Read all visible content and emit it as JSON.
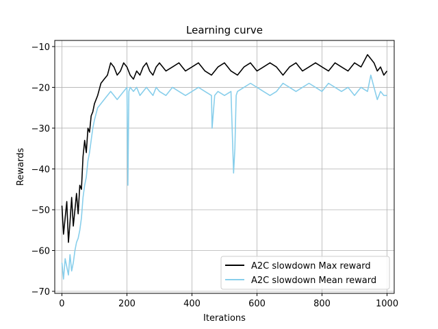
{
  "chart_data": {
    "type": "line",
    "title": "Learning curve",
    "xlabel": "Iterations",
    "ylabel": "Rewards",
    "xlim": [
      -22,
      1022
    ],
    "ylim": [
      -70.5,
      -8.5
    ],
    "xticks": [
      0,
      200,
      400,
      600,
      800,
      1000
    ],
    "yticks": [
      -70,
      -60,
      -50,
      -40,
      -30,
      -20,
      -10
    ],
    "xtick_labels": [
      "0",
      "200",
      "400",
      "600",
      "800",
      "1000"
    ],
    "ytick_labels": [
      "−70",
      "−60",
      "−50",
      "−40",
      "−30",
      "−20",
      "−10"
    ],
    "grid": true,
    "legend_position": "lower-right",
    "series": [
      {
        "name": "A2C slowdown Max reward",
        "color": "#000000",
        "x": [
          0,
          5,
          10,
          15,
          20,
          25,
          30,
          35,
          40,
          45,
          50,
          55,
          60,
          65,
          70,
          75,
          80,
          85,
          90,
          95,
          100,
          110,
          120,
          130,
          140,
          150,
          160,
          170,
          180,
          190,
          200,
          210,
          220,
          230,
          240,
          250,
          260,
          270,
          280,
          290,
          300,
          320,
          340,
          360,
          380,
          400,
          420,
          440,
          460,
          480,
          500,
          520,
          540,
          560,
          580,
          600,
          620,
          640,
          660,
          680,
          700,
          720,
          740,
          760,
          780,
          800,
          820,
          840,
          860,
          880,
          900,
          920,
          940,
          950,
          960,
          970,
          980,
          990,
          1000
        ],
        "values": [
          -49,
          -56,
          -52,
          -48,
          -58,
          -53,
          -47,
          -54,
          -50,
          -46,
          -51,
          -44,
          -45,
          -37,
          -33,
          -36,
          -30,
          -31,
          -27,
          -26,
          -24,
          -22,
          -19,
          -18,
          -17,
          -14,
          -15,
          -17,
          -16,
          -14,
          -15,
          -17,
          -18,
          -16,
          -17,
          -15,
          -14,
          -16,
          -17,
          -15,
          -14,
          -16,
          -15,
          -14,
          -16,
          -15,
          -14,
          -16,
          -17,
          -15,
          -14,
          -16,
          -17,
          -15,
          -14,
          -16,
          -15,
          -14,
          -15,
          -17,
          -15,
          -14,
          -16,
          -15,
          -14,
          -15,
          -16,
          -14,
          -15,
          -16,
          -14,
          -15,
          -12,
          -13,
          -14,
          -16,
          -15,
          -17,
          -16
        ]
      },
      {
        "name": "A2C slowdown Mean reward",
        "color": "#87ceeb",
        "x": [
          0,
          5,
          10,
          15,
          20,
          25,
          30,
          35,
          40,
          45,
          50,
          55,
          60,
          65,
          70,
          75,
          80,
          85,
          90,
          95,
          100,
          110,
          120,
          130,
          140,
          150,
          160,
          170,
          180,
          190,
          200,
          203,
          206,
          210,
          220,
          230,
          240,
          250,
          260,
          270,
          280,
          290,
          300,
          320,
          340,
          360,
          380,
          400,
          420,
          440,
          460,
          462,
          470,
          480,
          500,
          520,
          528,
          532,
          536,
          540,
          560,
          580,
          600,
          620,
          640,
          660,
          680,
          700,
          720,
          740,
          760,
          780,
          800,
          820,
          840,
          860,
          880,
          900,
          920,
          940,
          950,
          960,
          970,
          980,
          990,
          1000
        ],
        "values": [
          -63,
          -67,
          -62,
          -64,
          -66,
          -61,
          -65,
          -63,
          -60,
          -58,
          -57,
          -55,
          -52,
          -47,
          -44,
          -42,
          -38,
          -36,
          -33,
          -30,
          -28,
          -25,
          -24,
          -23,
          -22,
          -21,
          -22,
          -23,
          -22,
          -21,
          -20,
          -44,
          -21,
          -20,
          -21,
          -20,
          -22,
          -21,
          -20,
          -21,
          -22,
          -20,
          -21,
          -22,
          -20,
          -21,
          -22,
          -21,
          -20,
          -21,
          -22,
          -30,
          -22,
          -21,
          -22,
          -21,
          -41,
          -35,
          -22,
          -21,
          -20,
          -19,
          -20,
          -21,
          -22,
          -21,
          -19,
          -20,
          -21,
          -20,
          -19,
          -20,
          -21,
          -19,
          -20,
          -21,
          -20,
          -22,
          -20,
          -21,
          -17,
          -20,
          -23,
          -21,
          -22,
          -22
        ]
      }
    ]
  }
}
